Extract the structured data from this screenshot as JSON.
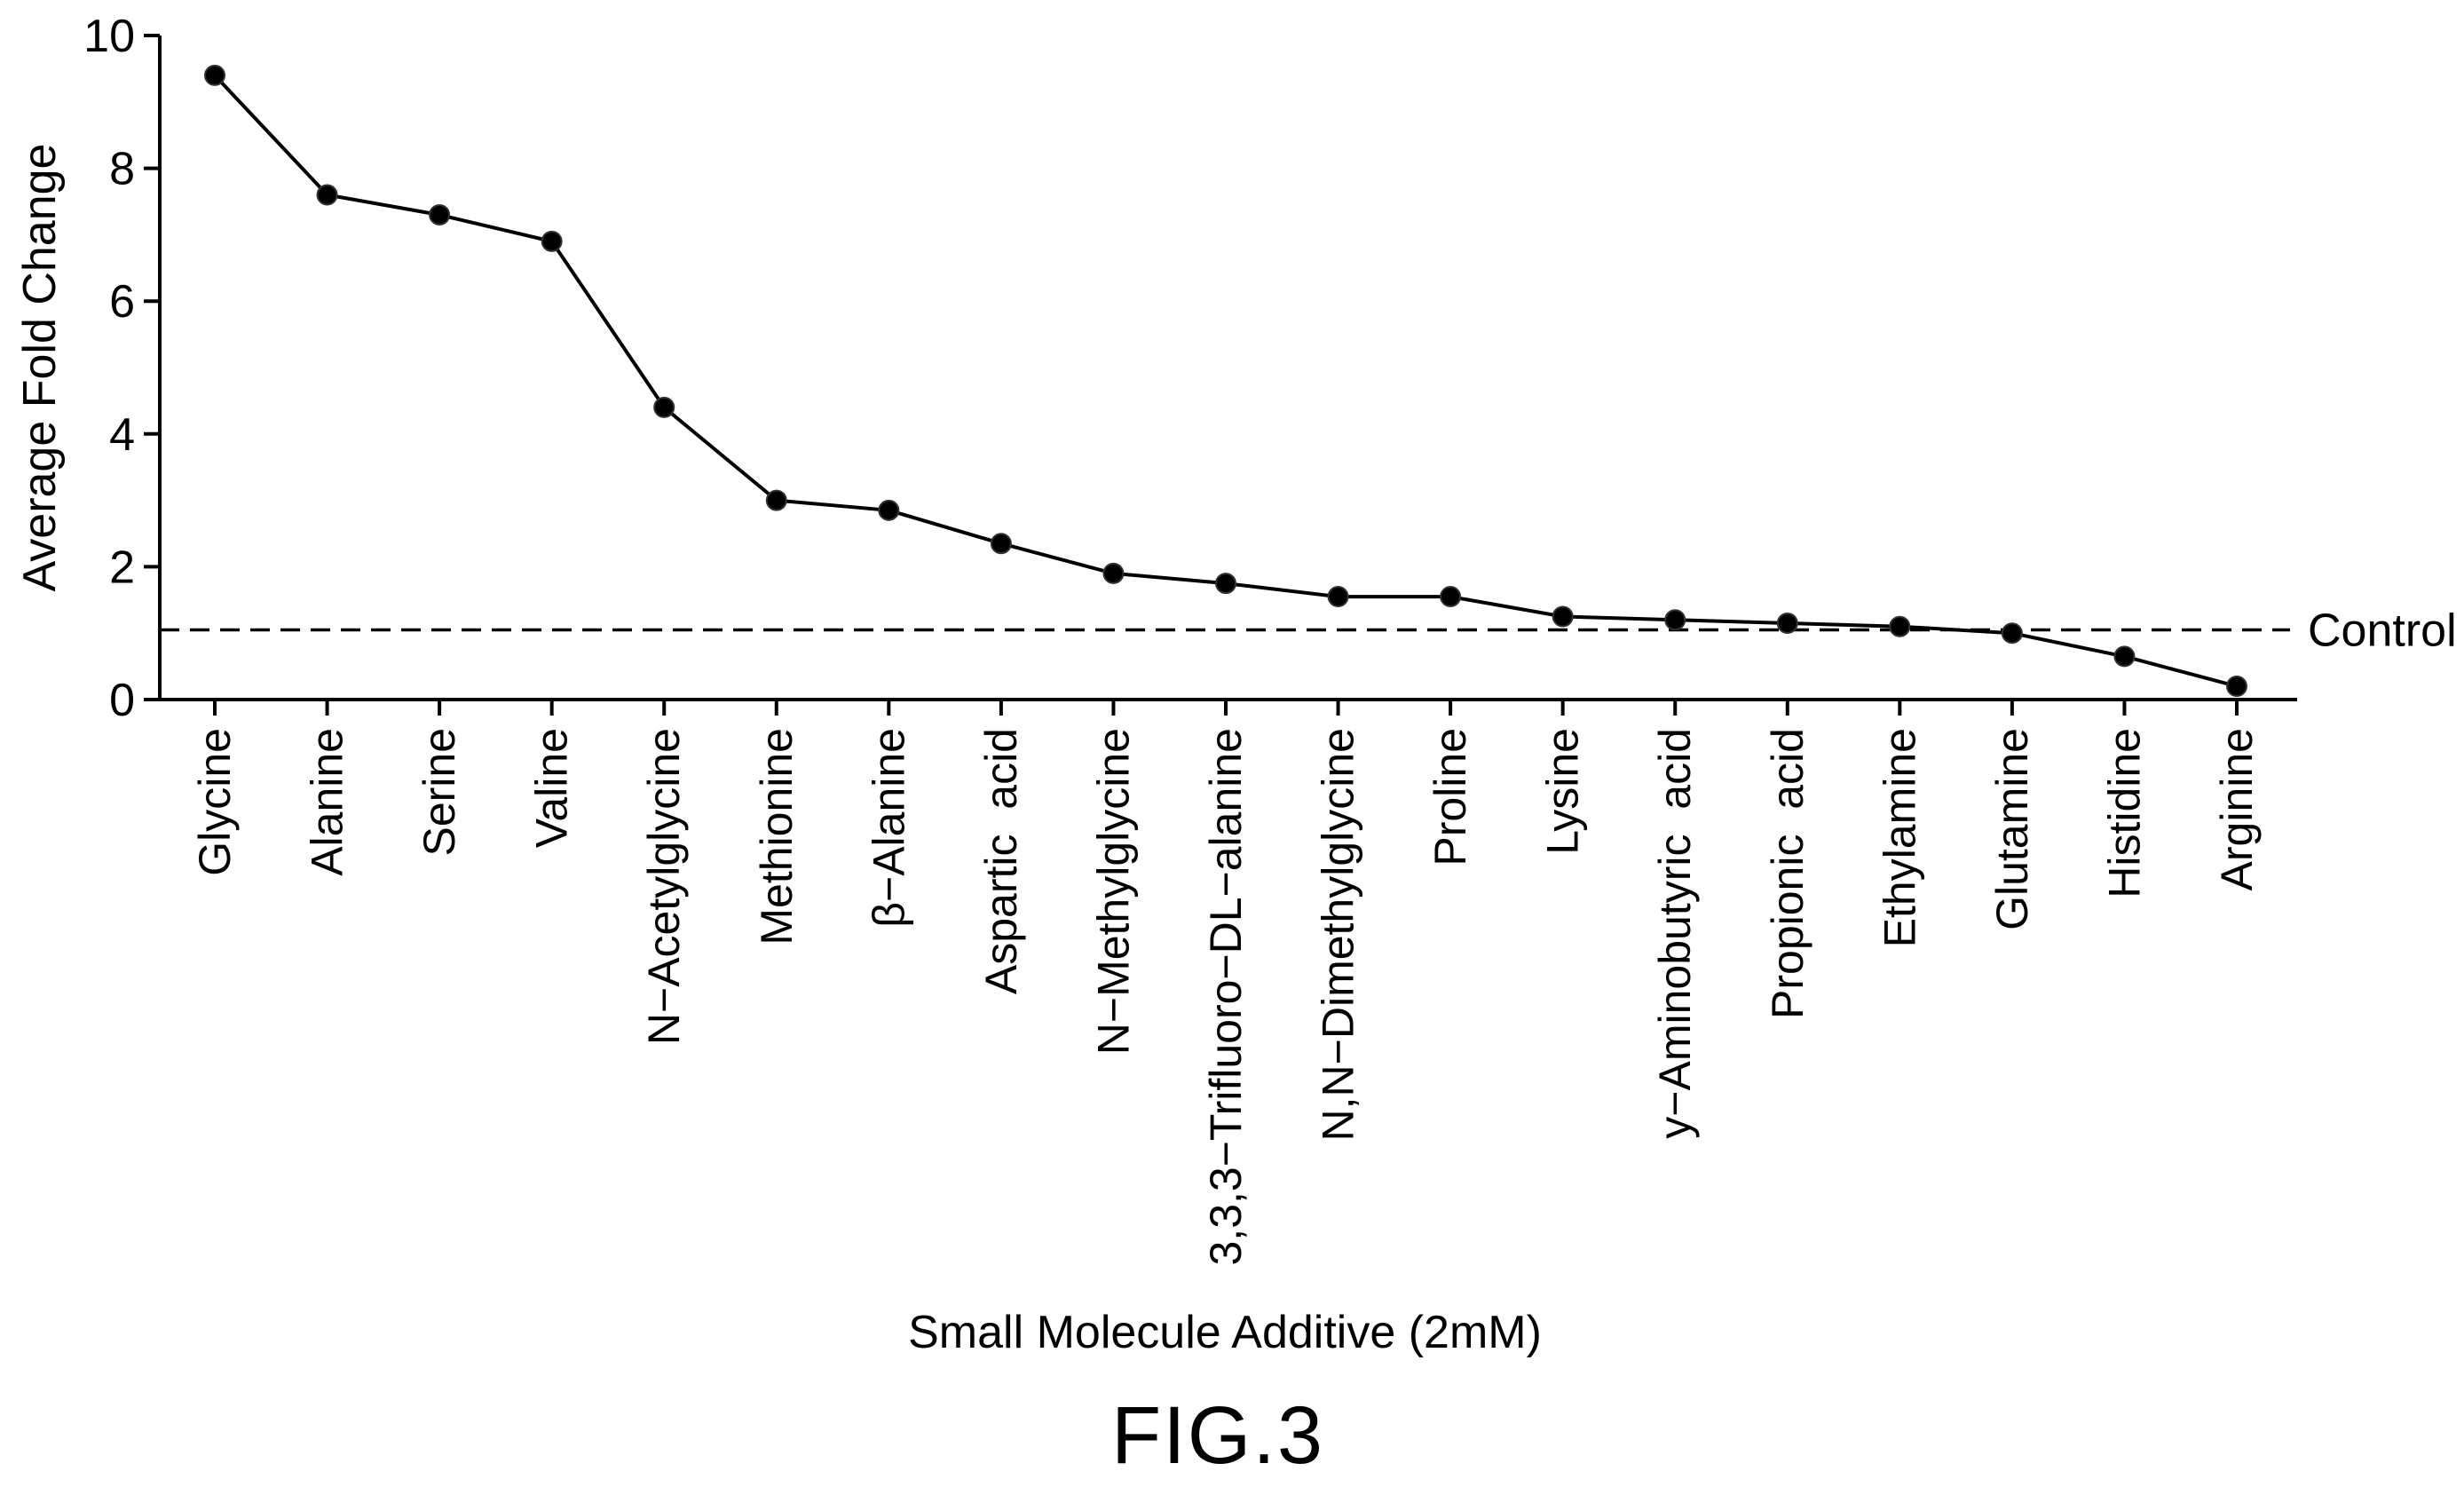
{
  "chart_data": {
    "type": "line",
    "categories": [
      "Glycine",
      "Alanine",
      "Serine",
      "Valine",
      "N−Acetylglycine",
      "Methionine",
      "β−Alanine",
      "Aspartic  acid",
      "N−Methylglycine",
      "3,3,3−Trifluoro−DL−alanine",
      "N,N−Dimethylglycine",
      "Proline",
      "Lysine",
      "y−Aminobutyric  acid",
      "Propionic  acid",
      "Ethylamine",
      "Glutamine",
      "Histidine",
      "Arginine"
    ],
    "values": [
      9.4,
      7.6,
      7.3,
      6.9,
      4.4,
      3.0,
      2.85,
      2.35,
      1.9,
      1.75,
      1.55,
      1.55,
      1.25,
      1.2,
      1.15,
      1.1,
      1.0,
      0.65,
      0.2
    ],
    "xlabel": "Small Molecule Additive (2mM)",
    "ylabel": "Average Fold Change",
    "ylim": [
      0,
      10
    ],
    "yticks": [
      0,
      2,
      4,
      6,
      8,
      10
    ],
    "grid": false,
    "reference_line": {
      "label": "Control",
      "value": 1.05,
      "style": "dashed"
    }
  },
  "caption": "FIG.3",
  "colors": {
    "line": "#000000",
    "marker": "#000000",
    "background": "#ffffff"
  }
}
